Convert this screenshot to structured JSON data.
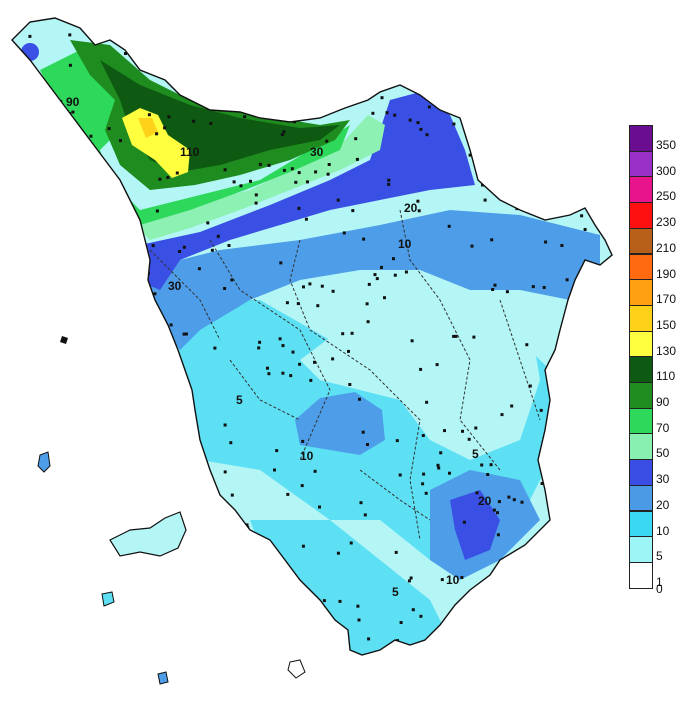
{
  "legend": {
    "classes": [
      {
        "label": "350",
        "color": "#6a0d91"
      },
      {
        "label": "300",
        "color": "#9b30c8"
      },
      {
        "label": "250",
        "color": "#e8148c"
      },
      {
        "label": "230",
        "color": "#ff1010"
      },
      {
        "label": "210",
        "color": "#b8601a"
      },
      {
        "label": "190",
        "color": "#ff6a10"
      },
      {
        "label": "170",
        "color": "#ffa010"
      },
      {
        "label": "150",
        "color": "#ffd21a"
      },
      {
        "label": "130",
        "color": "#ffff40"
      },
      {
        "label": "110",
        "color": "#0e5a12"
      },
      {
        "label": "90",
        "color": "#1e8c1e"
      },
      {
        "label": "70",
        "color": "#2ed85a"
      },
      {
        "label": "50",
        "color": "#88f0b0"
      },
      {
        "label": "30",
        "color": "#3a4ee6"
      },
      {
        "label": "20",
        "color": "#4a9ae6"
      },
      {
        "label": "10",
        "color": "#3ad8f2"
      },
      {
        "label": "5",
        "color": "#9ef5f5"
      },
      {
        "label": "1",
        "color": "#ffffff"
      }
    ],
    "bottom_label": "0"
  },
  "contour_labels": [
    {
      "text": "90",
      "value": 90
    },
    {
      "text": "110",
      "value": 110
    },
    {
      "text": "30",
      "value": 30
    },
    {
      "text": "30",
      "value": 30
    },
    {
      "text": "20",
      "value": 20
    },
    {
      "text": "10",
      "value": 10
    },
    {
      "text": "5",
      "value": 5
    },
    {
      "text": "10",
      "value": 10
    },
    {
      "text": "5",
      "value": 5
    },
    {
      "text": "20",
      "value": 20
    },
    {
      "text": "10",
      "value": 10
    },
    {
      "text": "5",
      "value": 5
    }
  ]
}
